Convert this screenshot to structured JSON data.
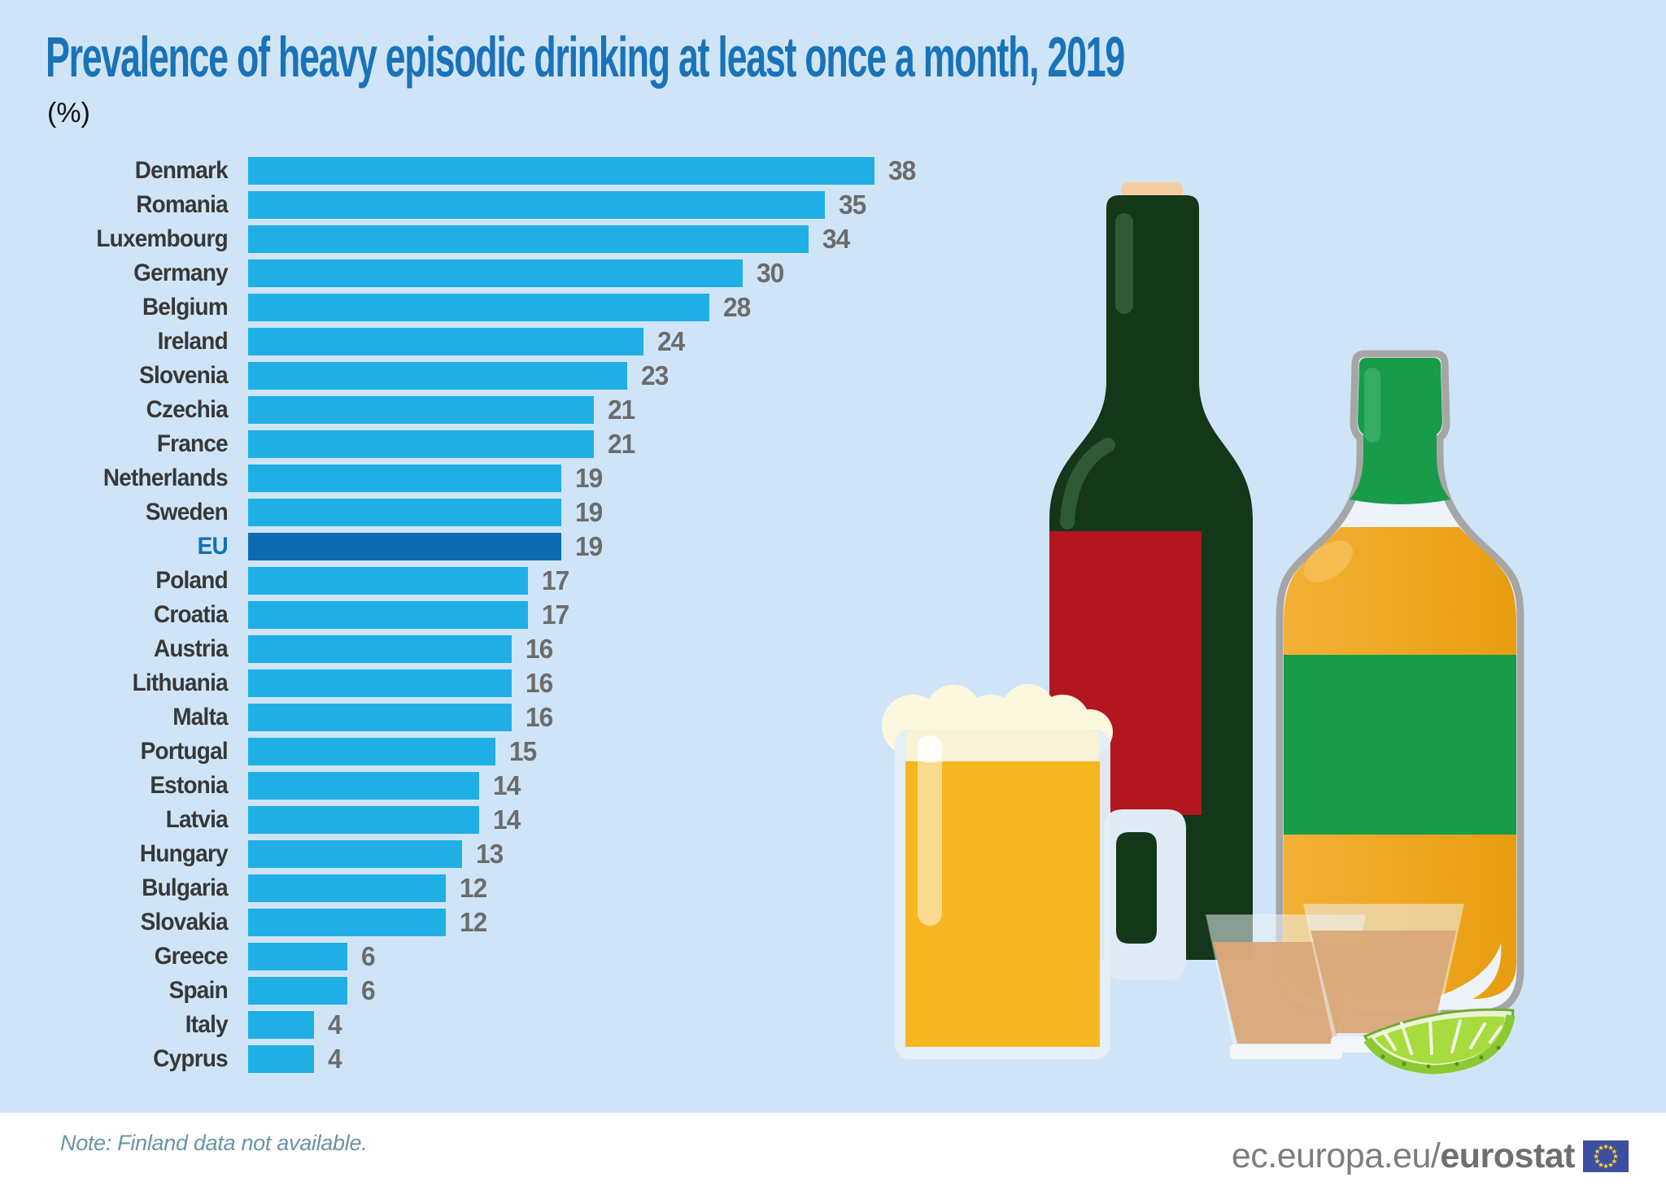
{
  "title": "Prevalence of heavy episodic drinking at least once a month, 2019",
  "subtitle": "(%)",
  "note": "Note: Finland data not available.",
  "footer": {
    "url_prefix": "ec.europa.eu/",
    "url_bold": "eurostat",
    "flag_icon": "eu-flag-icon"
  },
  "colors": {
    "background": "#cfe5f7",
    "title_blue": "#1a73b9",
    "bar_cyan": "#1fafe5",
    "eu_bar_blue": "#0b6cb4",
    "eu_label_blue": "#1070b8",
    "country_label": "#383838",
    "value_label": "#6c6c6c",
    "note_text": "#6b93a9",
    "footer_text": "#7d7d7d",
    "flag_blue": "#3c4fa0",
    "flag_stars": "#f8d12b"
  },
  "chart_data": {
    "type": "bar",
    "orientation": "horizontal",
    "unit": "%",
    "xlim": [
      0,
      40
    ],
    "grid": false,
    "legend": "none",
    "value_labels": "outside-end",
    "categories": [
      "Denmark",
      "Romania",
      "Luxembourg",
      "Germany",
      "Belgium",
      "Ireland",
      "Slovenia",
      "Czechia",
      "France",
      "Netherlands",
      "Sweden",
      "EU",
      "Poland",
      "Croatia",
      "Austria",
      "Lithuania",
      "Malta",
      "Portugal",
      "Estonia",
      "Latvia",
      "Hungary",
      "Bulgaria",
      "Slovakia",
      "Greece",
      "Spain",
      "Italy",
      "Cyprus"
    ],
    "values": [
      38,
      35,
      34,
      30,
      28,
      24,
      23,
      21,
      21,
      19,
      19,
      19,
      17,
      17,
      16,
      16,
      16,
      15,
      14,
      14,
      13,
      12,
      12,
      6,
      6,
      4,
      4
    ],
    "highlight_category": "EU",
    "bar_color": "#1fafe5",
    "highlight_color": "#0b6cb4",
    "title": "Prevalence of heavy episodic drinking at least once a month, 2019",
    "xlabel": "%",
    "ylabel": ""
  },
  "illustration": {
    "items": [
      "wine-bottle",
      "whisky-bottle",
      "beer-mug",
      "shot-glass-left",
      "shot-glass-right",
      "lime-wedge"
    ],
    "colors": {
      "wine_bottle_green": "#143619",
      "wine_label_red": "#b2161f",
      "cork": "#f5cda2",
      "whisky_green": "#189c4a",
      "whisky_amber": "#eba31c",
      "glass_tint": "#eef4f9",
      "glass_outline": "#a6a6a6",
      "beer_amber": "#f7b720",
      "foam_cream": "#fcf8df",
      "shot_liquid": "#d9a878",
      "lime_green": "#a6dc3e",
      "lime_rind": "#8cc832"
    }
  }
}
